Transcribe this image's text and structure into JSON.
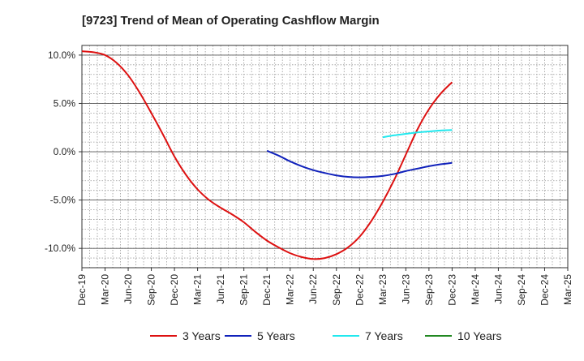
{
  "chart_data": {
    "type": "line",
    "title": "[9723]  Trend of Mean of Operating Cashflow Margin",
    "xlabel": "",
    "ylabel": "",
    "x_tick_labels": [
      "Dec-19",
      "Mar-20",
      "Jun-20",
      "Sep-20",
      "Dec-20",
      "Mar-21",
      "Jun-21",
      "Sep-21",
      "Dec-21",
      "Mar-22",
      "Jun-22",
      "Sep-22",
      "Dec-22",
      "Mar-23",
      "Jun-23",
      "Sep-23",
      "Dec-23",
      "Mar-24",
      "Jun-24",
      "Sep-24",
      "Dec-24",
      "Mar-25"
    ],
    "y_ticks": [
      10,
      5,
      0,
      -5,
      -10
    ],
    "y_tick_labels": [
      "10.0%",
      "5.0%",
      "0.0%",
      "-5.0%",
      "-10.0%"
    ],
    "ylim": [
      -12,
      11
    ],
    "grid": true,
    "legend_position": "bottom",
    "series": [
      {
        "name": "3 Years",
        "color": "#dd1111",
        "points": [
          [
            0,
            10.4
          ],
          [
            0.5,
            10.3
          ],
          [
            1,
            10.0
          ],
          [
            1.5,
            9.2
          ],
          [
            2,
            7.9
          ],
          [
            2.5,
            6.1
          ],
          [
            3,
            4.0
          ],
          [
            3.5,
            1.8
          ],
          [
            4,
            -0.5
          ],
          [
            4.5,
            -2.4
          ],
          [
            5,
            -3.9
          ],
          [
            5.5,
            -5.0
          ],
          [
            6,
            -5.8
          ],
          [
            6.5,
            -6.5
          ],
          [
            7,
            -7.3
          ],
          [
            7.5,
            -8.3
          ],
          [
            8,
            -9.2
          ],
          [
            8.5,
            -9.9
          ],
          [
            9,
            -10.5
          ],
          [
            9.5,
            -10.9
          ],
          [
            10,
            -11.1
          ],
          [
            10.5,
            -11.0
          ],
          [
            11,
            -10.6
          ],
          [
            11.5,
            -9.9
          ],
          [
            12,
            -8.8
          ],
          [
            12.5,
            -7.2
          ],
          [
            13,
            -5.2
          ],
          [
            13.5,
            -2.9
          ],
          [
            14,
            -0.3
          ],
          [
            14.5,
            2.3
          ],
          [
            15,
            4.4
          ],
          [
            15.5,
            6.0
          ],
          [
            16,
            7.2
          ]
        ]
      },
      {
        "name": "5 Years",
        "color": "#1122bb",
        "points": [
          [
            8,
            0.1
          ],
          [
            8.5,
            -0.4
          ],
          [
            9,
            -1.0
          ],
          [
            9.5,
            -1.5
          ],
          [
            10,
            -1.9
          ],
          [
            10.5,
            -2.2
          ],
          [
            11,
            -2.45
          ],
          [
            11.5,
            -2.6
          ],
          [
            12,
            -2.65
          ],
          [
            12.5,
            -2.6
          ],
          [
            13,
            -2.5
          ],
          [
            13.5,
            -2.3
          ],
          [
            14,
            -2.0
          ],
          [
            14.5,
            -1.75
          ],
          [
            15,
            -1.5
          ],
          [
            15.5,
            -1.3
          ],
          [
            16,
            -1.15
          ]
        ]
      },
      {
        "name": "7 Years",
        "color": "#22e8ee",
        "points": [
          [
            13,
            1.5
          ],
          [
            13.5,
            1.7
          ],
          [
            14,
            1.85
          ],
          [
            14.5,
            2.0
          ],
          [
            15,
            2.1
          ],
          [
            15.5,
            2.2
          ],
          [
            16,
            2.25
          ]
        ]
      },
      {
        "name": "10 Years",
        "color": "#228822",
        "points": []
      }
    ]
  }
}
